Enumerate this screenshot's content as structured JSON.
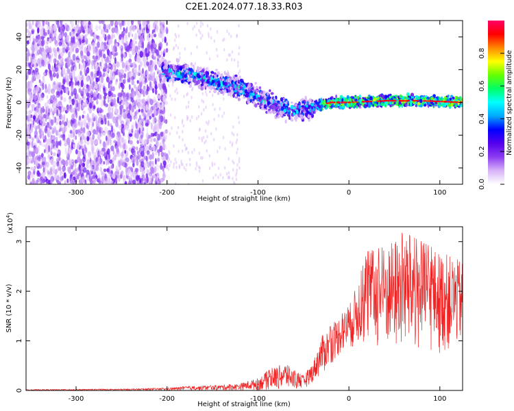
{
  "title": "C2E1.2024.077.18.33.R03",
  "chart_data": [
    {
      "type": "heatmap",
      "xlabel": "Height of straight line (km)",
      "ylabel": "Frequency (Hz)",
      "xlim": [
        -355,
        125
      ],
      "ylim": [
        -50,
        50
      ],
      "xticks": [
        -300,
        -200,
        -100,
        0,
        100
      ],
      "yticks": [
        -40,
        -20,
        0,
        20,
        40
      ],
      "colorbar": {
        "label": "Normalized spectral amplitude",
        "range": [
          0,
          1
        ],
        "ticks": [
          0.0,
          0.2,
          0.4,
          0.6,
          0.8
        ],
        "colormap": [
          "#ffffff",
          "#d8b4f8",
          "#8b3cf0",
          "#5500ee",
          "#0000ff",
          "#00a8ff",
          "#00ffff",
          "#00ff66",
          "#66ff00",
          "#ffff00",
          "#ff8800",
          "#ff0000",
          "#ff0066"
        ]
      },
      "ridge": {
        "x": [
          -200,
          -175,
          -150,
          -125,
          -100,
          -80,
          -60,
          -40,
          -20,
          0,
          40,
          80,
          125
        ],
        "y": [
          19,
          17,
          13,
          10,
          3,
          -2,
          -5,
          -3,
          0,
          0,
          1,
          1,
          0
        ]
      },
      "grid": false
    },
    {
      "type": "line",
      "xlabel": "Height of straight line (km)",
      "ylabel": "SNR (10 * v/v)",
      "multiplier": "(x10",
      "multiplier_exp": "4",
      "xlim": [
        -355,
        125
      ],
      "ylim": [
        0,
        3.3
      ],
      "xticks": [
        -300,
        -200,
        -100,
        0,
        100
      ],
      "yticks": [
        0,
        1,
        2,
        3
      ],
      "color": "#ee2222",
      "envelope": {
        "x": [
          -355,
          -250,
          -200,
          -180,
          -150,
          -120,
          -100,
          -85,
          -70,
          -60,
          -50,
          -40,
          -30,
          -20,
          -10,
          0,
          10,
          20,
          40,
          60,
          80,
          100,
          125
        ],
        "y": [
          0.02,
          0.03,
          0.05,
          0.08,
          0.1,
          0.14,
          0.25,
          0.45,
          0.55,
          0.4,
          0.3,
          0.55,
          1.1,
          1.3,
          1.5,
          1.7,
          2.2,
          2.8,
          2.9,
          3.2,
          3.0,
          2.8,
          2.6
        ]
      },
      "baseline": {
        "x": [
          -355,
          -100,
          -50,
          -30,
          -10,
          10,
          30,
          60,
          100,
          125
        ],
        "y": [
          0.0,
          0.0,
          0.02,
          0.3,
          0.7,
          0.9,
          0.8,
          0.7,
          0.7,
          0.9
        ]
      },
      "grid": false
    }
  ]
}
